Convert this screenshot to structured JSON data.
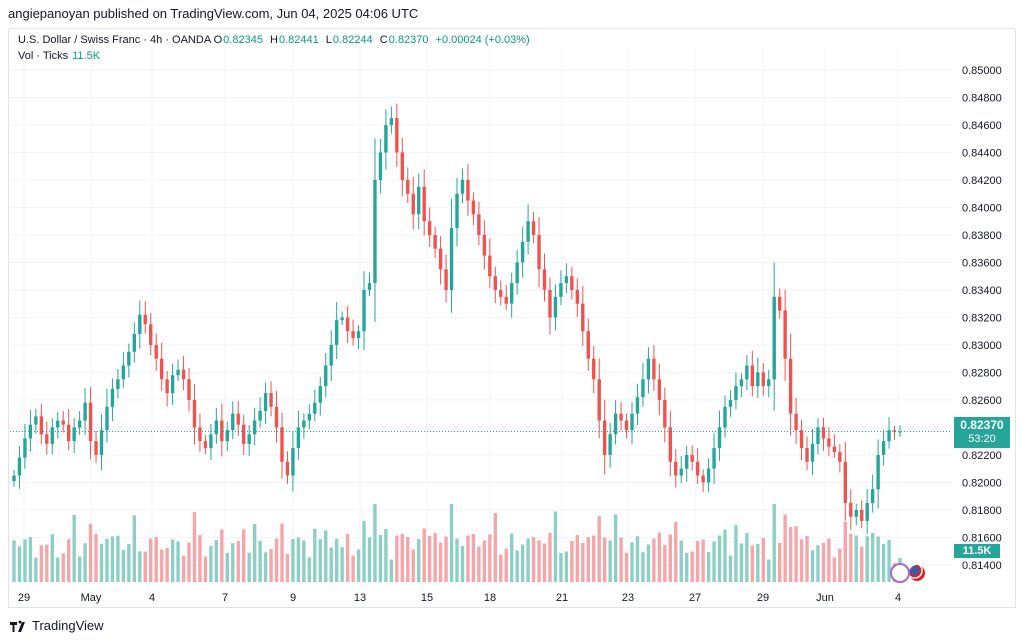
{
  "header": {
    "published_by": "angiepanoyan published on TradingView.com, Jun 04, 2025 04:06 UTC"
  },
  "legend": {
    "symbol": "U.S. Dollar / Swiss Franc · 4h · OANDA",
    "open_label": "O",
    "open": "0.82345",
    "high_label": "H",
    "high": "0.82441",
    "low_label": "L",
    "low": "0.82244",
    "close_label": "C",
    "close": "0.82370",
    "change": "+0.00024 (+0.03%)",
    "vol_label": "Vol · Ticks",
    "vol_value": "11.5K"
  },
  "price_tag": {
    "price": "0.82370",
    "countdown": "53:20"
  },
  "vol_tag": {
    "value": "11.5K"
  },
  "footer": {
    "brand": "TradingView"
  },
  "colors": {
    "up": "#26a69a",
    "down": "#ef5350",
    "vol_up": "#8ecfc5",
    "vol_down": "#f4a6a8",
    "grid": "#f0f3fa"
  },
  "chart_data": {
    "type": "candlestick",
    "y_axis_ticks": [
      "0.85000",
      "0.84800",
      "0.84600",
      "0.84400",
      "0.84200",
      "0.84000",
      "0.83800",
      "0.83600",
      "0.83400",
      "0.83200",
      "0.83000",
      "0.82800",
      "0.82600",
      "0.82400",
      "0.82200",
      "0.82000",
      "0.81800",
      "0.81600",
      "0.81400"
    ],
    "ylim": [
      0.8129,
      0.8516
    ],
    "x_axis_ticks": [
      "29",
      "May",
      "4",
      "7",
      "9",
      "13",
      "15",
      "18",
      "21",
      "23",
      "27",
      "29",
      "Jun",
      "4"
    ],
    "candles_close_path": [
      0.8205,
      0.8218,
      0.8232,
      0.8242,
      0.8248,
      0.8235,
      0.8228,
      0.824,
      0.8245,
      0.8242,
      0.823,
      0.824,
      0.8245,
      0.8258,
      0.823,
      0.822,
      0.8238,
      0.8255,
      0.8268,
      0.8275,
      0.8285,
      0.8295,
      0.8308,
      0.8322,
      0.8315,
      0.83,
      0.829,
      0.8275,
      0.8265,
      0.8278,
      0.8282,
      0.8275,
      0.826,
      0.824,
      0.823,
      0.8225,
      0.8235,
      0.8245,
      0.823,
      0.8238,
      0.825,
      0.8242,
      0.8228,
      0.8235,
      0.8245,
      0.8252,
      0.8265,
      0.8255,
      0.824,
      0.8215,
      0.8205,
      0.8225,
      0.824,
      0.8245,
      0.825,
      0.8258,
      0.827,
      0.8285,
      0.83,
      0.8318,
      0.832,
      0.831,
      0.8305,
      0.831,
      0.834,
      0.8345,
      0.842,
      0.844,
      0.846,
      0.8465,
      0.844,
      0.842,
      0.841,
      0.8395,
      0.8415,
      0.839,
      0.838,
      0.837,
      0.8355,
      0.834,
      0.8385,
      0.841,
      0.842,
      0.8405,
      0.8395,
      0.838,
      0.8365,
      0.835,
      0.834,
      0.8335,
      0.833,
      0.8345,
      0.836,
      0.8375,
      0.839,
      0.838,
      0.8355,
      0.834,
      0.832,
      0.8335,
      0.8345,
      0.835,
      0.834,
      0.833,
      0.831,
      0.829,
      0.8275,
      0.8245,
      0.822,
      0.8235,
      0.825,
      0.8245,
      0.8238,
      0.825,
      0.8262,
      0.8275,
      0.829,
      0.8275,
      0.826,
      0.824,
      0.8215,
      0.8205,
      0.821,
      0.822,
      0.8215,
      0.8205,
      0.82,
      0.821,
      0.8225,
      0.824,
      0.8255,
      0.826,
      0.827,
      0.8275,
      0.8285,
      0.827,
      0.828,
      0.827,
      0.8275,
      0.8335,
      0.8325,
      0.829,
      0.825,
      0.8238,
      0.8225,
      0.8215,
      0.8228,
      0.824,
      0.8232,
      0.8226,
      0.8222,
      0.8215,
      0.8185,
      0.8175,
      0.818,
      0.8172,
      0.8185,
      0.8195,
      0.822,
      0.823,
      0.8238,
      0.8237,
      0.8237
    ]
  }
}
